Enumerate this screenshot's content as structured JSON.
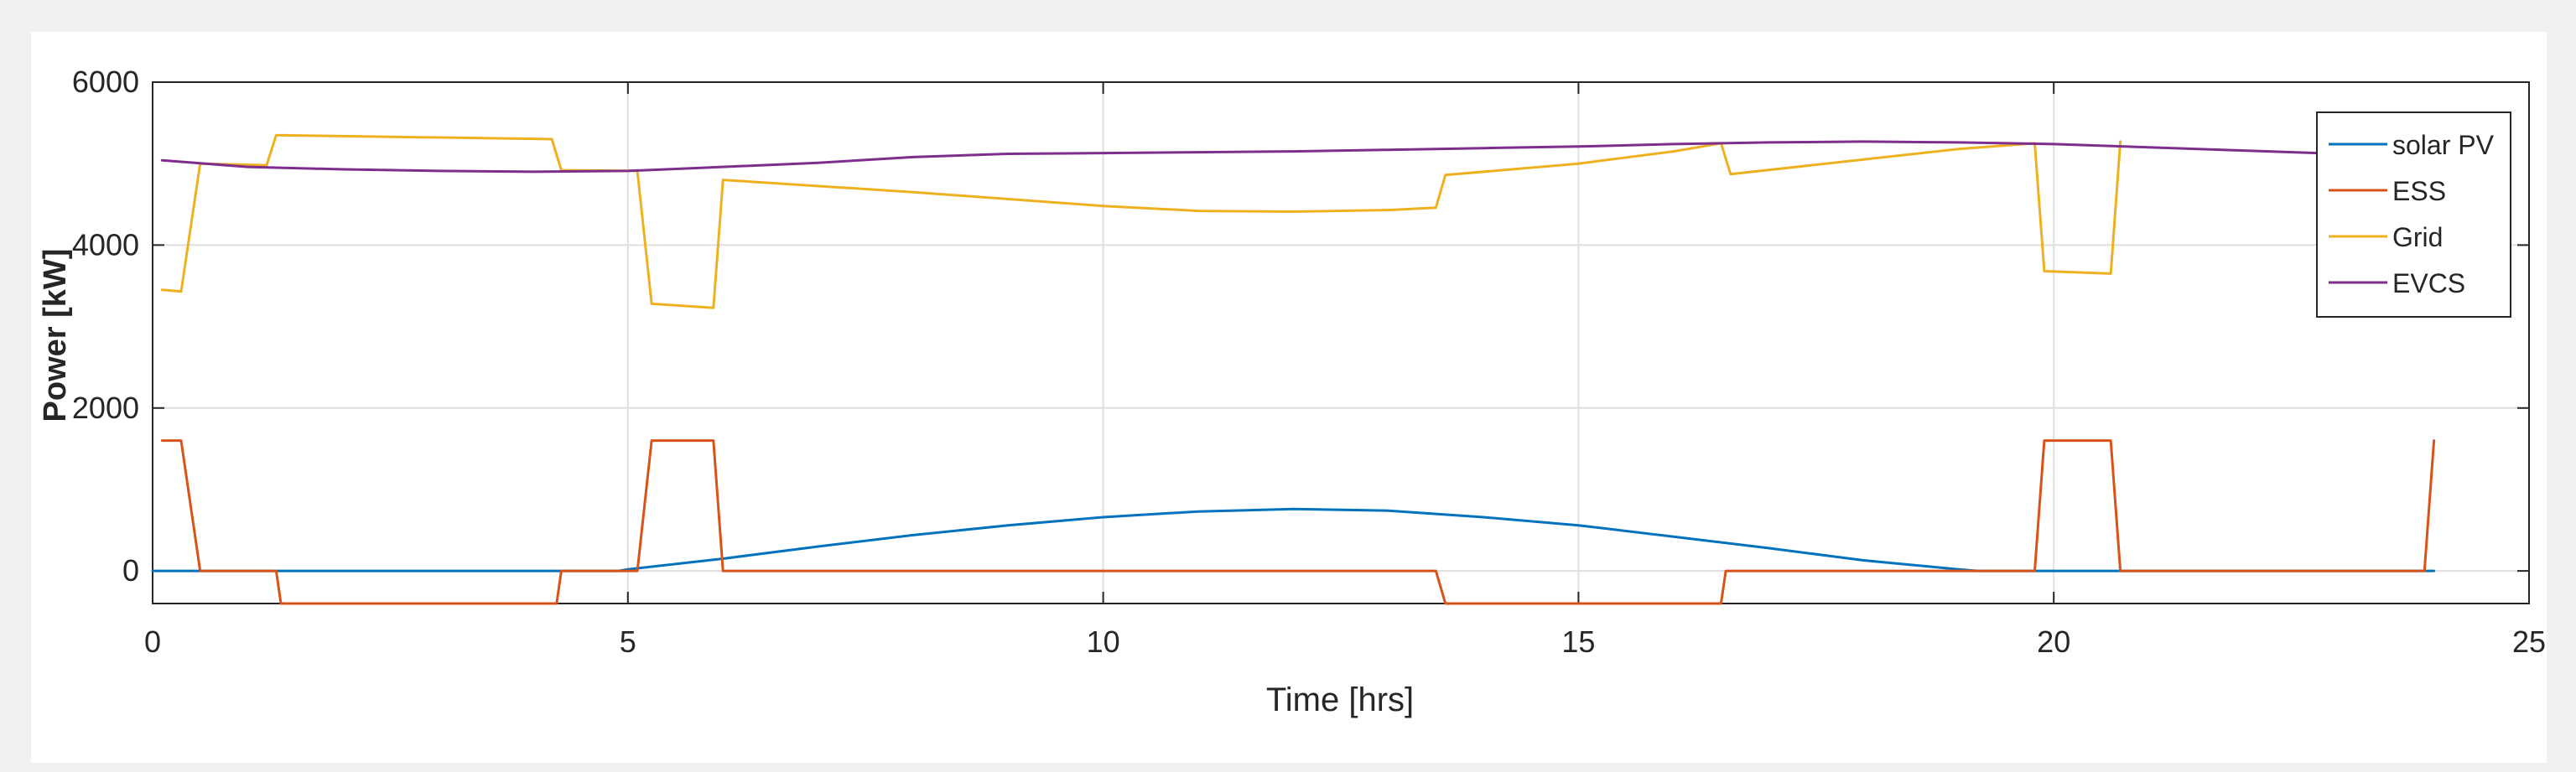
{
  "chart_data": {
    "type": "line",
    "title": "",
    "xlabel": "Time [hrs]",
    "ylabel": "Power [kW]",
    "xlim": [
      0,
      25
    ],
    "ylim": [
      -400,
      6000
    ],
    "xticks": [
      0,
      5,
      10,
      15,
      20,
      25
    ],
    "yticks": [
      0,
      2000,
      4000,
      6000
    ],
    "grid": true,
    "legend_position": "top-right",
    "series": [
      {
        "name": "solar PV",
        "color": "#0072BD",
        "x": [
          0,
          4.9,
          5,
          6,
          7,
          8,
          9,
          10,
          11,
          12,
          13,
          14,
          15,
          16,
          17,
          18,
          19,
          19.2,
          24
        ],
        "y": [
          0,
          0,
          20,
          150,
          300,
          440,
          560,
          660,
          730,
          760,
          740,
          660,
          560,
          420,
          280,
          130,
          20,
          0,
          0
        ]
      },
      {
        "name": "ESS",
        "color": "#D95319",
        "x": [
          0.1,
          0.3,
          0.5,
          1.3,
          1.35,
          4.25,
          4.3,
          5.1,
          5.25,
          5.9,
          6.0,
          13.5,
          13.6,
          16.5,
          16.55,
          19.8,
          19.9,
          20.6,
          20.7,
          23.9,
          24.0
        ],
        "y": [
          1600,
          1600,
          0,
          0,
          -400,
          -400,
          0,
          0,
          1600,
          1600,
          0,
          0,
          -400,
          -400,
          0,
          0,
          1600,
          1600,
          0,
          0,
          1600
        ]
      },
      {
        "name": "Grid",
        "color": "#EDB120",
        "x": [
          0.1,
          0.3,
          0.5,
          1.2,
          1.3,
          4.2,
          4.3,
          5.1,
          5.25,
          5.9,
          6.0,
          8,
          10,
          11,
          12,
          13,
          13.5,
          13.6,
          15,
          16,
          16.5,
          16.6,
          18,
          19,
          19.8,
          19.9,
          20.6,
          20.7
        ],
        "y": [
          3450,
          3430,
          5000,
          4980,
          5350,
          5300,
          4920,
          4910,
          3280,
          3230,
          4800,
          4650,
          4480,
          4420,
          4410,
          4430,
          4460,
          4860,
          5000,
          5150,
          5250,
          4870,
          5050,
          5180,
          5250,
          3680,
          3650,
          5270
        ]
      },
      {
        "name": "EVCS",
        "color": "#7E2F8E",
        "x": [
          0.1,
          1,
          2,
          3,
          4,
          5,
          6,
          7,
          8,
          9,
          10,
          11,
          12,
          13,
          14,
          15,
          16,
          17,
          18,
          19,
          20,
          21,
          22,
          23,
          24
        ],
        "y": [
          5040,
          4960,
          4930,
          4910,
          4900,
          4910,
          4960,
          5010,
          5080,
          5120,
          5130,
          5140,
          5150,
          5170,
          5190,
          5210,
          5240,
          5260,
          5270,
          5260,
          5240,
          5200,
          5160,
          5120,
          5100
        ]
      }
    ]
  }
}
